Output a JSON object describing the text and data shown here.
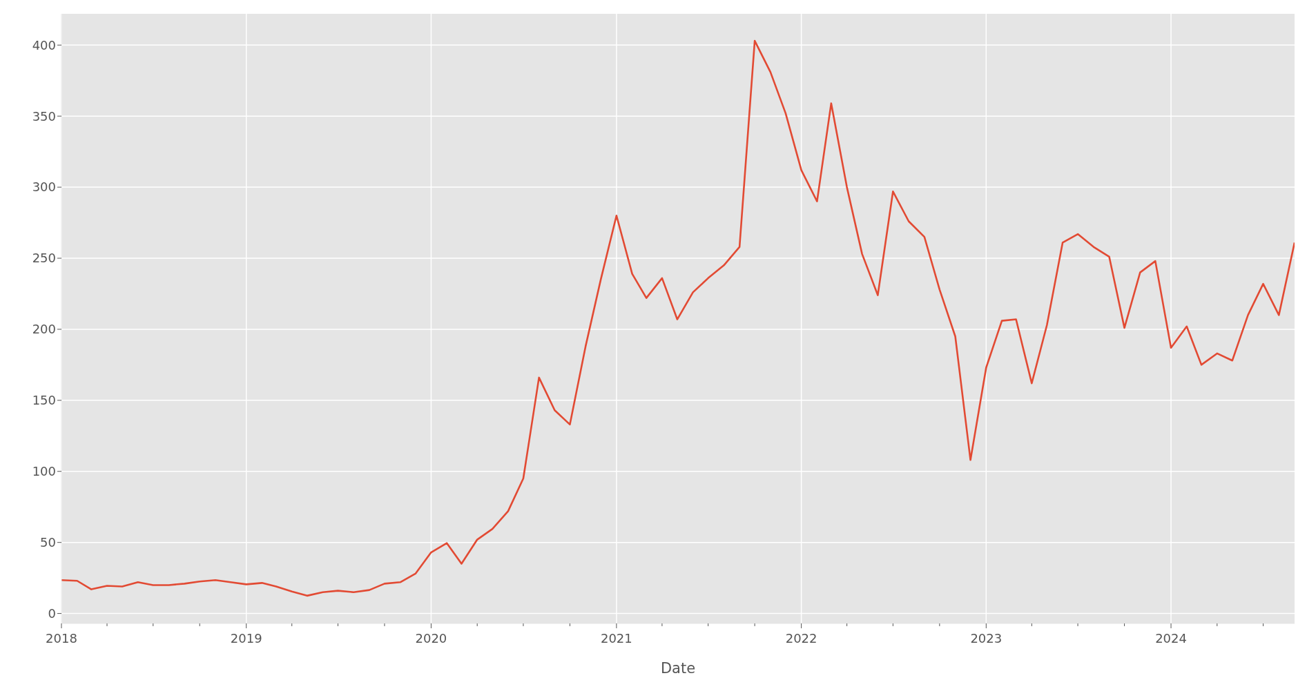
{
  "chart_data": {
    "type": "line",
    "xlabel": "Date",
    "x": [
      "2018-01",
      "2018-02",
      "2018-03",
      "2018-04",
      "2018-05",
      "2018-06",
      "2018-07",
      "2018-08",
      "2018-09",
      "2018-10",
      "2018-11",
      "2018-12",
      "2019-01",
      "2019-02",
      "2019-03",
      "2019-04",
      "2019-05",
      "2019-06",
      "2019-07",
      "2019-08",
      "2019-09",
      "2019-10",
      "2019-11",
      "2019-12",
      "2020-01",
      "2020-02",
      "2020-03",
      "2020-04",
      "2020-05",
      "2020-06",
      "2020-07",
      "2020-08",
      "2020-09",
      "2020-10",
      "2020-11",
      "2020-12",
      "2021-01",
      "2021-02",
      "2021-03",
      "2021-04",
      "2021-05",
      "2021-06",
      "2021-07",
      "2021-08",
      "2021-09",
      "2021-10",
      "2021-11",
      "2021-12",
      "2022-01",
      "2022-02",
      "2022-03",
      "2022-04",
      "2022-05",
      "2022-06",
      "2022-07",
      "2022-08",
      "2022-09",
      "2022-10",
      "2022-11",
      "2022-12",
      "2023-01",
      "2023-02",
      "2023-03",
      "2023-04",
      "2023-05",
      "2023-06",
      "2023-07",
      "2023-08",
      "2023-09",
      "2023-10",
      "2023-11",
      "2023-12",
      "2024-01",
      "2024-02",
      "2024-03",
      "2024-04",
      "2024-05",
      "2024-06",
      "2024-07",
      "2024-08",
      "2024-09"
    ],
    "series": [
      {
        "color": "#e24a33",
        "values": [
          23.5,
          23,
          17,
          19.5,
          19,
          22,
          20,
          20,
          21,
          22.5,
          23.5,
          22,
          20.5,
          21.5,
          19,
          15.5,
          12.5,
          15,
          16,
          15,
          16.5,
          21,
          22,
          28,
          43,
          49.5,
          35,
          52,
          59.5,
          72,
          95,
          166,
          143,
          133,
          188,
          235,
          280,
          239,
          222,
          236,
          207,
          226,
          236,
          245,
          258,
          403,
          381,
          352,
          312,
          290,
          359,
          300,
          253,
          224,
          297,
          276,
          265,
          228,
          195,
          108,
          173,
          206,
          207,
          162,
          203,
          261,
          267,
          258,
          251,
          201,
          240,
          248,
          187,
          202,
          175,
          183,
          178,
          210,
          232,
          210,
          261
        ]
      }
    ],
    "xlim": [
      "2018-01",
      "2024-09"
    ],
    "xticks": [
      {
        "value": "2018-01",
        "label": "2018"
      },
      {
        "value": "2018-04",
        "label": null
      },
      {
        "value": "2018-07",
        "label": null
      },
      {
        "value": "2018-10",
        "label": null
      },
      {
        "value": "2019-01",
        "label": "2019"
      },
      {
        "value": "2019-04",
        "label": null
      },
      {
        "value": "2019-07",
        "label": null
      },
      {
        "value": "2019-10",
        "label": null
      },
      {
        "value": "2020-01",
        "label": "2020"
      },
      {
        "value": "2020-04",
        "label": null
      },
      {
        "value": "2020-07",
        "label": null
      },
      {
        "value": "2020-10",
        "label": null
      },
      {
        "value": "2021-01",
        "label": "2021"
      },
      {
        "value": "2021-04",
        "label": null
      },
      {
        "value": "2021-07",
        "label": null
      },
      {
        "value": "2021-10",
        "label": null
      },
      {
        "value": "2022-01",
        "label": "2022"
      },
      {
        "value": "2022-04",
        "label": null
      },
      {
        "value": "2022-07",
        "label": null
      },
      {
        "value": "2022-10",
        "label": null
      },
      {
        "value": "2023-01",
        "label": "2023"
      },
      {
        "value": "2023-04",
        "label": null
      },
      {
        "value": "2023-07",
        "label": null
      },
      {
        "value": "2023-10",
        "label": null
      },
      {
        "value": "2024-01",
        "label": "2024"
      },
      {
        "value": "2024-04",
        "label": null
      },
      {
        "value": "2024-07",
        "label": null
      }
    ],
    "ylim": [
      -7,
      422
    ],
    "yticks": [
      0,
      50,
      100,
      150,
      200,
      250,
      300,
      350,
      400
    ],
    "grid": true,
    "marker": "none",
    "line_style": "solid"
  }
}
